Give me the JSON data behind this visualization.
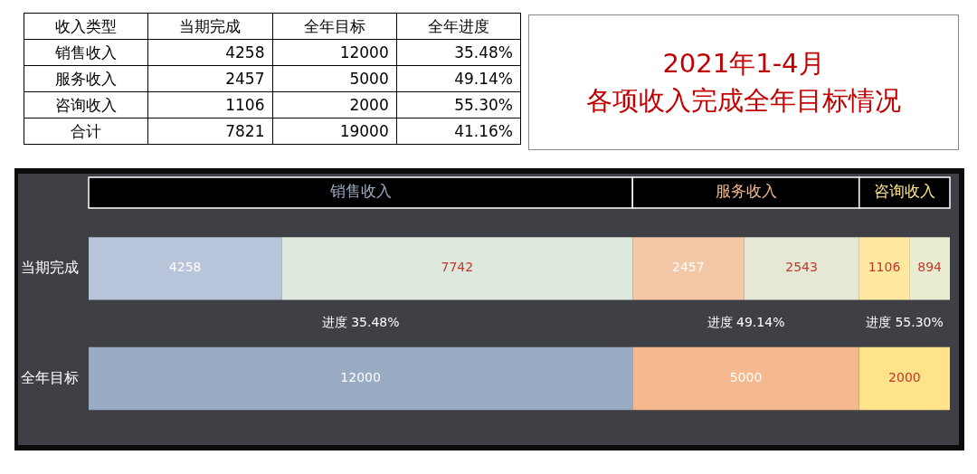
{
  "chart_data": [
    {
      "type": "other",
      "ylabel": "收入类型",
      "categories": [
        "当期完成",
        "全年目标",
        "全年进度"
      ],
      "y_categories": [
        "销售收入",
        "服务收入",
        "咨询收入",
        "合计"
      ],
      "cell_labels": [
        [
          "4258",
          "12000",
          "35.48%"
        ],
        [
          "2457",
          "5000",
          "49.14%"
        ],
        [
          "1106",
          "2000",
          "55.30%"
        ],
        [
          "7821",
          "19000",
          "41.16%"
        ]
      ]
    },
    {
      "type": "bar",
      "orientation": "horizontal",
      "stacked": true,
      "title": "2021年1-4月",
      "subtitle": "各项收入完成全年目标情况",
      "categories": [
        "当期完成",
        "全年目标"
      ],
      "series": [
        {
          "color": "#b8c4d9",
          "values": [
            4258,
            null
          ]
        },
        {
          "color": "#dfe8dc",
          "values": [
            7742,
            null
          ]
        },
        {
          "color": "#f4c7a6",
          "values": [
            2457,
            null
          ]
        },
        {
          "color": "#e4e8d4",
          "values": [
            2543,
            null
          ]
        },
        {
          "color": "#ffe8a0",
          "values": [
            1106,
            null
          ]
        },
        {
          "color": "#eaecd2",
          "values": [
            894,
            null
          ]
        },
        {
          "name": "销售收入",
          "color": "#9aabc4",
          "values": [
            null,
            12000
          ]
        },
        {
          "name": "服务收入",
          "color": "#f4b98f",
          "values": [
            null,
            5000
          ]
        },
        {
          "name": "咨询收入",
          "color": "#ffe38a",
          "values": [
            null,
            2000
          ]
        }
      ],
      "xlim": [
        0,
        19000
      ],
      "tick_labels": "y",
      "data_labels": true,
      "legend": false,
      "grid": false,
      "annotations": [
        "进度 35.48%",
        "进度 49.14%",
        "进度 55.30%"
      ]
    }
  ]
}
